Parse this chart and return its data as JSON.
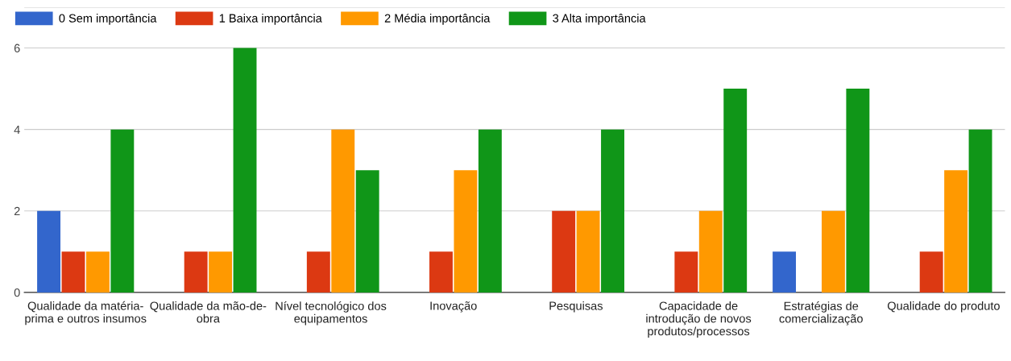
{
  "chart_data": {
    "type": "bar",
    "categories": [
      "Qualidade da matéria-prima e outros insumos",
      "Qualidade da mão-de-obra",
      "Nível tecnológico dos equipamentos",
      "Inovação",
      "Pesquisas",
      "Capacidade de introdução de novos produtos/processos",
      "Estratégias de comercialização",
      "Qualidade do produto"
    ],
    "series": [
      {
        "name": "0 Sem importância",
        "color": "#3366cc",
        "values": [
          2,
          0,
          0,
          0,
          0,
          0,
          1,
          0
        ]
      },
      {
        "name": "1 Baixa importância",
        "color": "#dc3912",
        "values": [
          1,
          1,
          1,
          1,
          2,
          1,
          0,
          1
        ]
      },
      {
        "name": "2 Média importância",
        "color": "#ff9900",
        "values": [
          1,
          1,
          4,
          3,
          2,
          2,
          2,
          3
        ]
      },
      {
        "name": "3 Alta importância",
        "color": "#109618",
        "values": [
          4,
          6,
          3,
          4,
          4,
          5,
          5,
          4
        ]
      }
    ],
    "ylim": [
      0,
      7
    ],
    "yticks": [
      0,
      2,
      4,
      6,
      {
        "value": 7,
        "label": null
      }
    ],
    "grid": "y",
    "legend": "top left"
  }
}
